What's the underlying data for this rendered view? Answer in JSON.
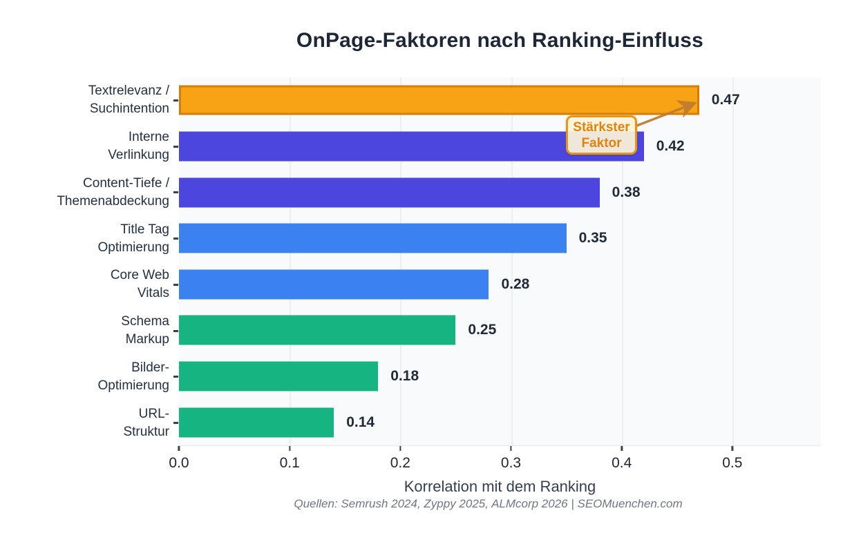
{
  "title": "OnPage-Faktoren nach Ranking-Einfluss",
  "axis": {
    "xlabel": "Korrelation mit dem Ranking",
    "tick_labels": [
      "0.0",
      "0.1",
      "0.2",
      "0.3",
      "0.4",
      "0.5"
    ],
    "tick_values": [
      0,
      0.1,
      0.2,
      0.3,
      0.4,
      0.5
    ],
    "x_max": 0.58
  },
  "source_note": "Quellen: Semrush 2024, Zyppy 2025, ALMcorp 2026 | SEOMuenchen.com",
  "annotation": {
    "line1": "Stärkster",
    "line2": "Faktor"
  },
  "colors": {
    "orange": "#F7A313",
    "orange_border": "#D47D08",
    "indigo": "#4D46DE",
    "blue": "#3B82F0",
    "green": "#15B481",
    "plot_bg": "#F8FAFB",
    "grid": "#ECEFF2",
    "text_dark": "#1F2937",
    "muted_text": "#6F7680",
    "annotation_bg": "#FCF3D8",
    "annotation_border": "#E8960F",
    "annotation_text": "#E2820D",
    "arrow": "#BE7B2E"
  },
  "chart_data": {
    "type": "bar",
    "orientation": "horizontal",
    "title": "OnPage-Faktoren nach Ranking-Einfluss",
    "xlabel": "Korrelation mit dem Ranking",
    "xlim": [
      0,
      0.58
    ],
    "grid": true,
    "legend": null,
    "categories": [
      "Textrelevanz / Suchintention",
      "Interne Verlinkung",
      "Content-Tiefe / Themenabdeckung",
      "Title Tag Optimierung",
      "Core Web Vitals",
      "Schema Markup",
      "Bilder-Optimierung",
      "URL-Struktur"
    ],
    "label_lines": [
      [
        "Textrelevanz /",
        "Suchintention"
      ],
      [
        "Interne",
        "Verlinkung"
      ],
      [
        "Content-Tiefe /",
        "Themenabdeckung"
      ],
      [
        "Title Tag",
        "Optimierung"
      ],
      [
        "Core Web",
        "Vitals"
      ],
      [
        "Schema",
        "Markup"
      ],
      [
        "Bilder-",
        "Optimierung"
      ],
      [
        "URL-",
        "Struktur"
      ]
    ],
    "values": [
      0.47,
      0.42,
      0.38,
      0.35,
      0.28,
      0.25,
      0.18,
      0.14
    ],
    "value_labels": [
      "0.47",
      "0.42",
      "0.38",
      "0.35",
      "0.28",
      "0.25",
      "0.18",
      "0.14"
    ],
    "bar_colors": [
      "#F7A313",
      "#4D46DE",
      "#4D46DE",
      "#3B82F0",
      "#3B82F0",
      "#15B481",
      "#15B481",
      "#15B481"
    ],
    "bar_edge_colors": [
      "#D47D08",
      null,
      null,
      null,
      null,
      null,
      null,
      null
    ],
    "annotation": {
      "text": "Stärkster Faktor",
      "target_category": "Textrelevanz / Suchintention",
      "target_value": 0.47
    }
  }
}
